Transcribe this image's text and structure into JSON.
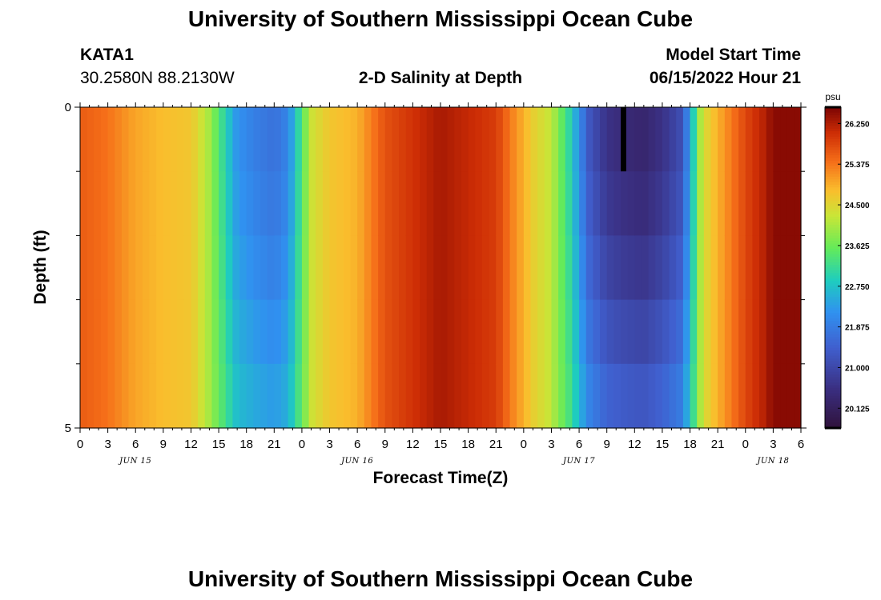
{
  "header": {
    "title": "University of Southern Mississippi Ocean Cube",
    "station": "KATA1",
    "coords": "30.2580N  88.2130W",
    "plot_title": "2-D Salinity at Depth",
    "model_label": "Model Start Time",
    "model_time": "06/15/2022 Hour 21"
  },
  "footer": {
    "title": "University of Southern Mississippi Ocean Cube"
  },
  "chart_data": {
    "type": "heatmap",
    "title": "2-D Salinity at Depth",
    "xlabel": "Forecast Time(Z)",
    "ylabel": "Depth (ft)",
    "ylim": [
      0,
      5
    ],
    "y_tick_labels": [
      "0",
      "5"
    ],
    "x_tick_labels": [
      "0",
      "3",
      "6",
      "9",
      "12",
      "15",
      "18",
      "21",
      "0",
      "3",
      "6",
      "9",
      "12",
      "15",
      "18",
      "21",
      "0",
      "3",
      "6",
      "9",
      "12",
      "15",
      "18",
      "21",
      "0",
      "3",
      "6"
    ],
    "day_labels": [
      {
        "label": "JUN 15",
        "hour": 6
      },
      {
        "label": "JUN 16",
        "hour": 30
      },
      {
        "label": "JUN 17",
        "hour": 54
      },
      {
        "label": "JUN 18",
        "hour": 75
      }
    ],
    "x_range_hours": [
      0,
      78
    ],
    "depth_layers": 5,
    "colorbar": {
      "unit": "psu",
      "min": 19.7,
      "max": 26.6,
      "tick_values": [
        26.25,
        25.375,
        24.5,
        23.625,
        22.75,
        21.875,
        21.0,
        20.125
      ],
      "tick_labels": [
        "26.250",
        "25.375",
        "24.500",
        "23.625",
        "22.750",
        "21.875",
        "21.000",
        "20.125"
      ]
    },
    "salinity_surface_by_hour": [
      [
        0,
        25.6
      ],
      [
        3,
        25.4
      ],
      [
        6,
        25.0
      ],
      [
        9,
        24.8
      ],
      [
        12,
        24.7
      ],
      [
        14,
        24.0
      ],
      [
        15,
        23.4
      ],
      [
        17,
        22.2
      ],
      [
        19,
        21.9
      ],
      [
        21,
        21.7
      ],
      [
        22.5,
        22.0
      ],
      [
        24,
        23.4
      ],
      [
        25,
        24.3
      ],
      [
        27,
        24.7
      ],
      [
        30,
        24.9
      ],
      [
        33,
        25.7
      ],
      [
        36,
        26.0
      ],
      [
        39,
        26.3
      ],
      [
        42,
        26.1
      ],
      [
        45,
        25.9
      ],
      [
        47,
        25.2
      ],
      [
        49,
        24.6
      ],
      [
        51,
        24.2
      ],
      [
        53,
        23.0
      ],
      [
        55,
        21.3
      ],
      [
        57,
        20.6
      ],
      [
        59,
        20.4
      ],
      [
        61,
        20.3
      ],
      [
        63,
        20.6
      ],
      [
        65,
        21.1
      ],
      [
        66,
        22.3
      ],
      [
        67,
        24.0
      ],
      [
        68,
        24.6
      ],
      [
        70,
        25.2
      ],
      [
        72,
        25.8
      ],
      [
        74,
        26.2
      ],
      [
        75,
        26.5
      ],
      [
        78,
        26.5
      ]
    ],
    "depth_adjustment_low_salinity": [
      0,
      0.1,
      0.25,
      0.45,
      0.65
    ],
    "missing_cells": [
      {
        "hour_start": 58.5,
        "hour_end": 59.1,
        "depth_layer": 0
      }
    ]
  }
}
